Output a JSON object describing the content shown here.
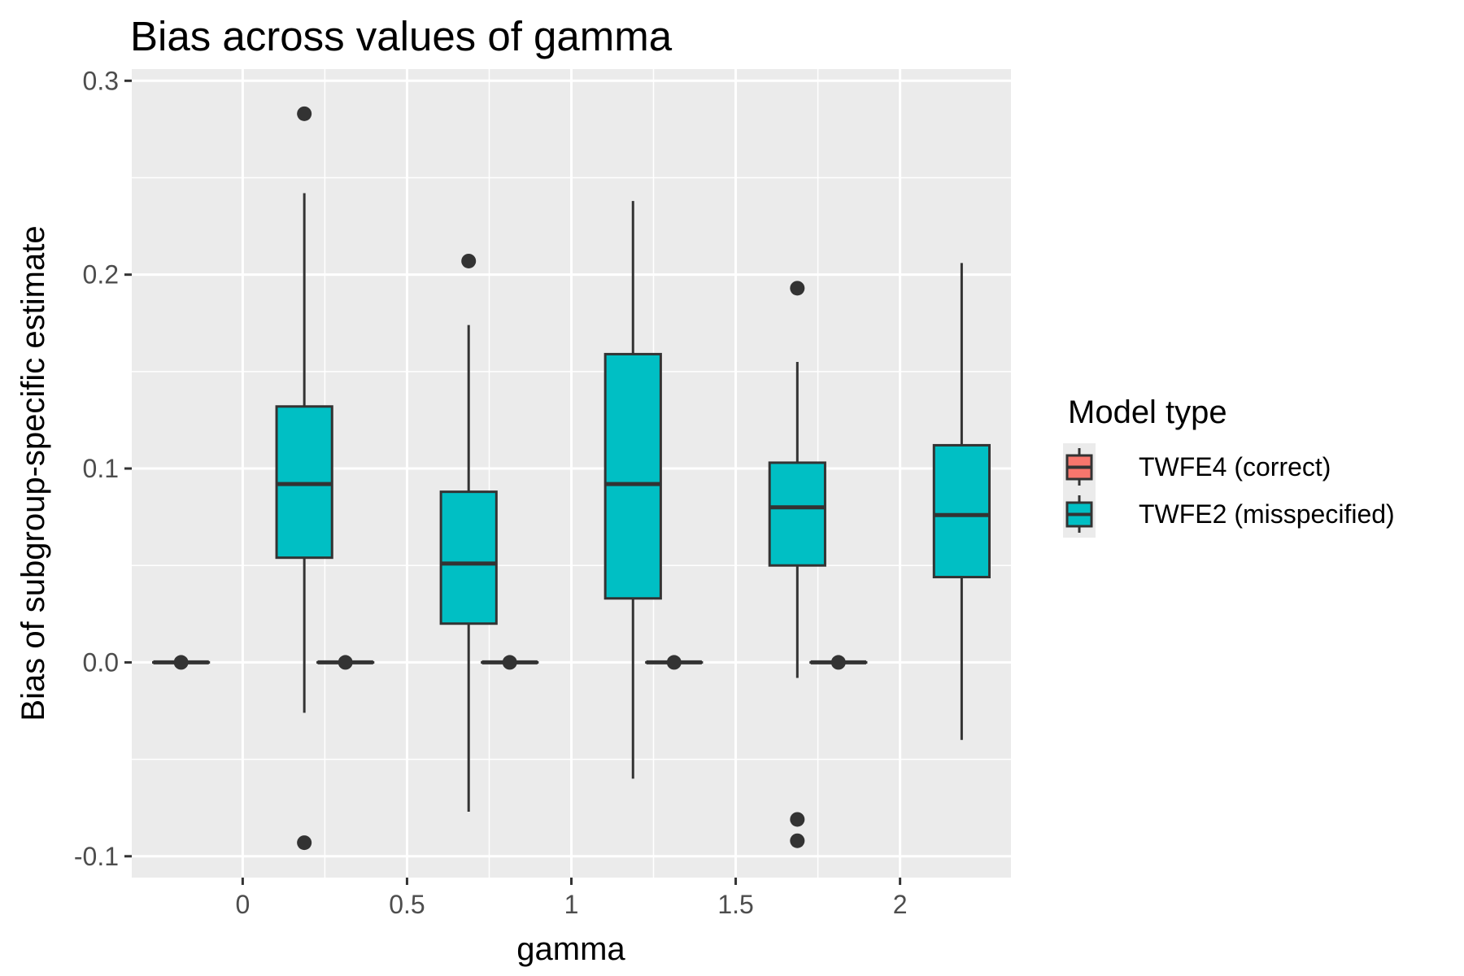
{
  "chart_data": {
    "type": "boxplot",
    "title": "Bias across values of gamma",
    "xlabel": "gamma",
    "ylabel": "Bias of subgroup-specific estimate",
    "categories": [
      "0",
      "0.5",
      "1",
      "1.5",
      "2"
    ],
    "x_values": [
      0,
      0.5,
      1,
      1.5,
      2
    ],
    "ylim": [
      -0.111,
      0.306
    ],
    "yticks": [
      -0.1,
      0.0,
      0.1,
      0.2,
      0.3
    ],
    "ytick_labels": [
      "-0.1",
      "0.0",
      "0.1",
      "0.2",
      "0.3"
    ],
    "grid": true,
    "legend": {
      "title": "Model type",
      "position": "right"
    },
    "series": [
      {
        "name": "TWFE4 (correct)",
        "color": "#F8766D",
        "boxes": [
          {
            "x": "0",
            "whisker_low": 0.0,
            "q1": 0.0,
            "median": 0.0,
            "q3": 0.0,
            "whisker_high": 0.0,
            "outliers": [
              0.0
            ]
          },
          {
            "x": "0.5",
            "whisker_low": 0.0,
            "q1": 0.0,
            "median": 0.0,
            "q3": 0.0,
            "whisker_high": 0.0,
            "outliers": [
              0.0
            ]
          },
          {
            "x": "1",
            "whisker_low": 0.0,
            "q1": 0.0,
            "median": 0.0,
            "q3": 0.0,
            "whisker_high": 0.0,
            "outliers": [
              0.0
            ]
          },
          {
            "x": "1.5",
            "whisker_low": 0.0,
            "q1": 0.0,
            "median": 0.0,
            "q3": 0.0,
            "whisker_high": 0.0,
            "outliers": [
              0.0
            ]
          },
          {
            "x": "2",
            "whisker_low": 0.0,
            "q1": 0.0,
            "median": 0.0,
            "q3": 0.0,
            "whisker_high": 0.0,
            "outliers": [
              0.0
            ]
          }
        ]
      },
      {
        "name": "TWFE2 (misspecified)",
        "color": "#00BFC4",
        "boxes": [
          {
            "x": "0",
            "whisker_low": -0.026,
            "q1": 0.054,
            "median": 0.092,
            "q3": 0.132,
            "whisker_high": 0.242,
            "outliers": [
              0.283,
              -0.093
            ]
          },
          {
            "x": "0.5",
            "whisker_low": -0.077,
            "q1": 0.02,
            "median": 0.051,
            "q3": 0.088,
            "whisker_high": 0.174,
            "outliers": [
              0.207
            ]
          },
          {
            "x": "1",
            "whisker_low": -0.06,
            "q1": 0.033,
            "median": 0.092,
            "q3": 0.159,
            "whisker_high": 0.238,
            "outliers": []
          },
          {
            "x": "1.5",
            "whisker_low": -0.008,
            "q1": 0.05,
            "median": 0.08,
            "q3": 0.103,
            "whisker_high": 0.155,
            "outliers": [
              0.193,
              -0.081,
              -0.092
            ]
          },
          {
            "x": "2",
            "whisker_low": -0.04,
            "q1": 0.044,
            "median": 0.076,
            "q3": 0.112,
            "whisker_high": 0.206,
            "outliers": []
          }
        ]
      }
    ]
  }
}
